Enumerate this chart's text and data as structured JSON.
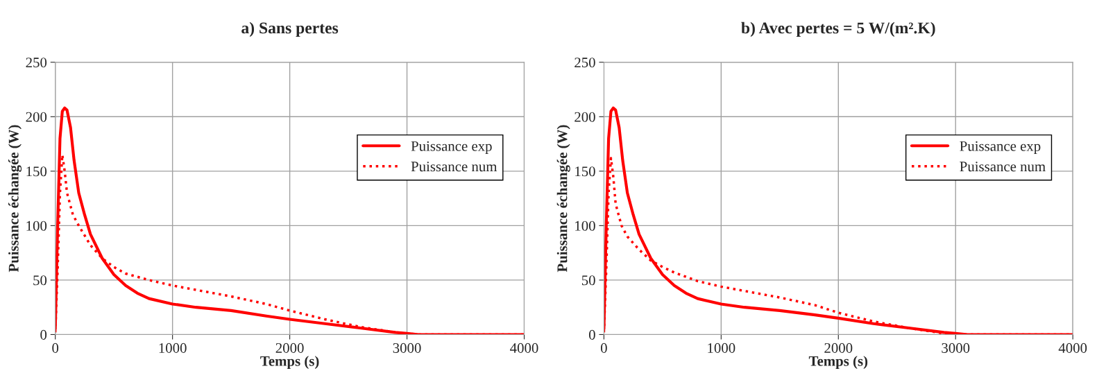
{
  "chart_data": [
    {
      "type": "line",
      "title": "a) Sans pertes",
      "xlabel": "Temps (s)",
      "ylabel": "Puissance échangée (W)",
      "xlim": [
        0,
        4000
      ],
      "xticks": [
        0,
        1000,
        2000,
        3000,
        4000
      ],
      "ylim": [
        0,
        250
      ],
      "yticks": [
        0,
        50,
        100,
        150,
        200,
        250
      ],
      "grid": true,
      "legend": "right",
      "series": [
        {
          "name": "Puissance exp",
          "color": "#ff0000",
          "line_style": "solid",
          "x": [
            0,
            20,
            40,
            60,
            80,
            100,
            130,
            160,
            200,
            250,
            300,
            400,
            500,
            600,
            700,
            800,
            1000,
            1200,
            1500,
            1800,
            2000,
            2300,
            2600,
            2900,
            3000,
            3100,
            4000
          ],
          "values": [
            5,
            100,
            180,
            205,
            208,
            206,
            190,
            160,
            130,
            110,
            92,
            70,
            55,
            45,
            38,
            33,
            28,
            25,
            22,
            17,
            14,
            10,
            6,
            2,
            1,
            0,
            0
          ]
        },
        {
          "name": "Puissance num",
          "color": "#ff0000",
          "line_style": "dotted",
          "x": [
            0,
            20,
            40,
            60,
            80,
            100,
            150,
            200,
            300,
            400,
            500,
            600,
            800,
            1000,
            1200,
            1500,
            1800,
            2000,
            2300,
            2600,
            2900,
            3100,
            4000
          ],
          "values": [
            2,
            60,
            130,
            165,
            150,
            130,
            110,
            100,
            82,
            70,
            62,
            56,
            50,
            45,
            41,
            35,
            28,
            22,
            14,
            7,
            2,
            0,
            0
          ]
        }
      ]
    },
    {
      "type": "line",
      "title": "b) Avec pertes = 5 W/(m².K)",
      "xlabel": "Temps (s)",
      "ylabel": "Puissance échangée (W)",
      "xlim": [
        0,
        4000
      ],
      "xticks": [
        0,
        1000,
        2000,
        3000,
        4000
      ],
      "ylim": [
        0,
        250
      ],
      "yticks": [
        0,
        50,
        100,
        150,
        200,
        250
      ],
      "grid": true,
      "legend": "right",
      "series": [
        {
          "name": "Puissance exp",
          "color": "#ff0000",
          "line_style": "solid",
          "x": [
            0,
            20,
            40,
            60,
            80,
            100,
            130,
            160,
            200,
            250,
            300,
            400,
            500,
            600,
            700,
            800,
            1000,
            1200,
            1500,
            1800,
            2000,
            2300,
            2600,
            2900,
            3000,
            3100,
            4000
          ],
          "values": [
            5,
            100,
            180,
            205,
            208,
            206,
            190,
            160,
            130,
            110,
            92,
            70,
            55,
            45,
            38,
            33,
            28,
            25,
            22,
            18,
            15,
            10,
            6,
            2,
            1,
            0,
            0
          ]
        },
        {
          "name": "Puissance num",
          "color": "#ff0000",
          "line_style": "dotted",
          "x": [
            0,
            20,
            40,
            60,
            80,
            100,
            150,
            200,
            300,
            400,
            500,
            600,
            800,
            1000,
            1200,
            1500,
            1800,
            2000,
            2300,
            2600,
            2900,
            3000,
            4000
          ],
          "values": [
            2,
            60,
            130,
            162,
            145,
            120,
            100,
            90,
            78,
            68,
            62,
            57,
            49,
            44,
            40,
            34,
            27,
            20,
            12,
            6,
            1,
            0,
            0
          ]
        }
      ]
    }
  ]
}
